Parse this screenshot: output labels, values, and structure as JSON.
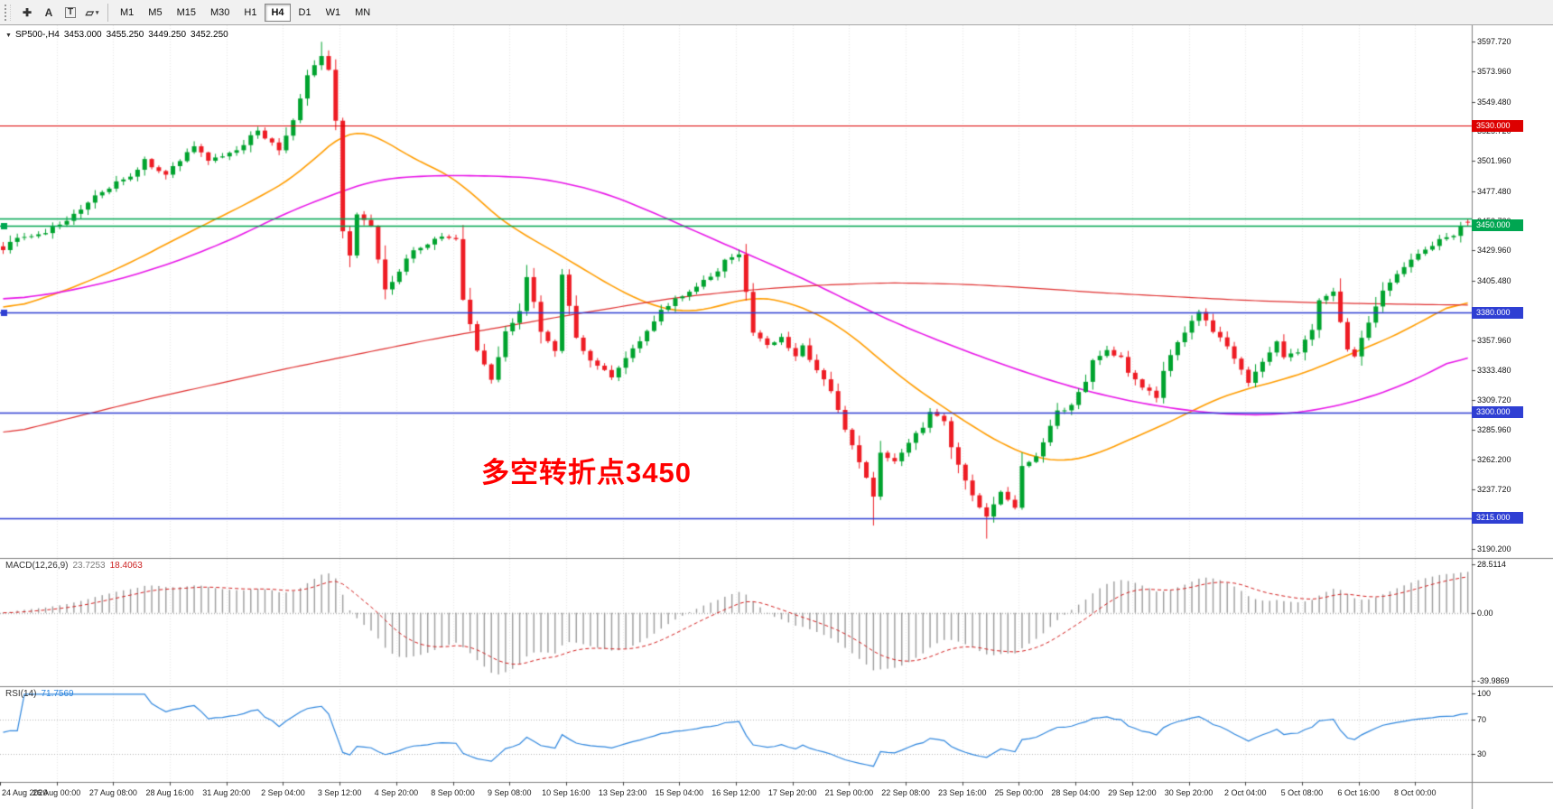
{
  "toolbar": {
    "tools": [
      {
        "name": "crosshair",
        "glyph": "✚"
      },
      {
        "name": "text-label",
        "glyph": "A"
      },
      {
        "name": "text",
        "glyph": "T",
        "boxed": true
      },
      {
        "name": "shapes",
        "glyph": "▱",
        "caret": "▾"
      }
    ],
    "timeframes": [
      "M1",
      "M5",
      "M15",
      "M30",
      "H1",
      "H4",
      "D1",
      "W1",
      "MN"
    ],
    "active_timeframe": "H4"
  },
  "chart": {
    "symbol_period": "SP500-,H4",
    "collapse_glyph": "▼",
    "open": "3453.000",
    "high": "3455.250",
    "low": "3449.250",
    "close": "3452.250",
    "annotation": "多空转折点3450",
    "annotation_color": "#ff0000",
    "price_axis": {
      "ticks": [
        {
          "label": "3597.720",
          "v": 3597.72
        },
        {
          "label": "3573.960",
          "v": 3573.96
        },
        {
          "label": "3549.480",
          "v": 3549.48
        },
        {
          "label": "3525.720",
          "v": 3525.72
        },
        {
          "label": "3501.960",
          "v": 3501.96
        },
        {
          "label": "3477.480",
          "v": 3477.48
        },
        {
          "label": "3453.720",
          "v": 3453.72
        },
        {
          "label": "3429.960",
          "v": 3429.96
        },
        {
          "label": "3405.480",
          "v": 3405.48
        },
        {
          "label": "3381.720",
          "v": 3381.72
        },
        {
          "label": "3357.960",
          "v": 3357.96
        },
        {
          "label": "3333.480",
          "v": 3333.48
        },
        {
          "label": "3309.720",
          "v": 3309.72
        },
        {
          "label": "3285.960",
          "v": 3285.96
        },
        {
          "label": "3262.200",
          "v": 3262.2
        },
        {
          "label": "3237.720",
          "v": 3237.72
        },
        {
          "label": "3213.960",
          "v": 3213.96
        },
        {
          "label": "3190.200",
          "v": 3190.2
        }
      ],
      "badges": [
        {
          "label": "3530.000",
          "price": 3530.0,
          "color": "#dd0000"
        },
        {
          "label": "3450.000",
          "price": 3450.0,
          "color": "#00a651"
        },
        {
          "label": "3380.000",
          "price": 3380.0,
          "color": "#2f3fd3"
        },
        {
          "label": "3300.000",
          "price": 3300.0,
          "color": "#2f3fd3"
        },
        {
          "label": "3215.000",
          "price": 3215.0,
          "color": "#2f3fd3"
        }
      ]
    },
    "h_lines": [
      {
        "price": 3530.0,
        "color": "#dd0000",
        "width": 1.2
      },
      {
        "price": 3455.5,
        "color": "#00a651",
        "width": 1.4
      },
      {
        "price": 3450.0,
        "color": "#00a651",
        "width": 1.4,
        "handle": true
      },
      {
        "price": 3380.0,
        "color": "#2f3fd3",
        "width": 1.4,
        "handle": true
      },
      {
        "price": 3300.0,
        "color": "#2f3fd3",
        "width": 1.4
      },
      {
        "price": 3215.0,
        "color": "#2f3fd3",
        "width": 1.6
      }
    ],
    "time_labels": [
      "24 Aug 2020",
      "26 Aug 00:00",
      "27 Aug 08:00",
      "28 Aug 16:00",
      "31 Aug 20:00",
      "2 Sep 04:00",
      "3 Sep 12:00",
      "4 Sep 20:00",
      "8 Sep 00:00",
      "9 Sep 08:00",
      "10 Sep 16:00",
      "13 Sep 23:00",
      "15 Sep 04:00",
      "16 Sep 12:00",
      "17 Sep 20:00",
      "21 Sep 00:00",
      "22 Sep 08:00",
      "23 Sep 16:00",
      "25 Sep 00:00",
      "28 Sep 04:00",
      "29 Sep 12:00",
      "30 Sep 20:00",
      "2 Oct 04:00",
      "5 Oct 08:00",
      "6 Oct 16:00",
      "8 Oct 00:00"
    ]
  },
  "chart_data": {
    "type": "candlestick",
    "symbol": "SP500-",
    "timeframe": "H4",
    "bars": 208,
    "price_axis_range": [
      3190.2,
      3597.72
    ],
    "last_bar": {
      "open": 3453.0,
      "high": 3455.25,
      "low": 3449.25,
      "close": 3452.25
    },
    "up_color": "#00a32e",
    "down_color": "#ee1c24",
    "close_waypoints": [
      [
        0,
        3430
      ],
      [
        1,
        3438
      ],
      [
        5,
        3442
      ],
      [
        10,
        3458
      ],
      [
        14,
        3478
      ],
      [
        18,
        3490
      ],
      [
        20,
        3502
      ],
      [
        23,
        3490
      ],
      [
        27,
        3515
      ],
      [
        29,
        3503
      ],
      [
        33,
        3510
      ],
      [
        36,
        3527
      ],
      [
        39,
        3510
      ],
      [
        41,
        3535
      ],
      [
        43,
        3571
      ],
      [
        45,
        3587
      ],
      [
        46,
        3575
      ],
      [
        47,
        3535
      ],
      [
        48,
        3446
      ],
      [
        49,
        3426
      ],
      [
        50,
        3458
      ],
      [
        52,
        3450
      ],
      [
        53,
        3422
      ],
      [
        54,
        3398
      ],
      [
        56,
        3414
      ],
      [
        58,
        3430
      ],
      [
        60,
        3434
      ],
      [
        62,
        3442
      ],
      [
        64,
        3438
      ],
      [
        65,
        3390
      ],
      [
        67,
        3349
      ],
      [
        69,
        3325
      ],
      [
        71,
        3365
      ],
      [
        73,
        3381
      ],
      [
        74,
        3410
      ],
      [
        76,
        3365
      ],
      [
        78,
        3349
      ],
      [
        79,
        3410
      ],
      [
        81,
        3361
      ],
      [
        82,
        3349
      ],
      [
        84,
        3337
      ],
      [
        86,
        3329
      ],
      [
        88,
        3345
      ],
      [
        90,
        3357
      ],
      [
        91,
        3365
      ],
      [
        93,
        3381
      ],
      [
        95,
        3390
      ],
      [
        97,
        3398
      ],
      [
        99,
        3406
      ],
      [
        101,
        3414
      ],
      [
        102,
        3422
      ],
      [
        104,
        3426
      ],
      [
        105,
        3398
      ],
      [
        106,
        3365
      ],
      [
        108,
        3353
      ],
      [
        110,
        3361
      ],
      [
        112,
        3345
      ],
      [
        113,
        3353
      ],
      [
        115,
        3333
      ],
      [
        117,
        3317
      ],
      [
        118,
        3301
      ],
      [
        120,
        3272
      ],
      [
        122,
        3248
      ],
      [
        123,
        3232
      ],
      [
        124,
        3268
      ],
      [
        126,
        3260
      ],
      [
        128,
        3276
      ],
      [
        130,
        3288
      ],
      [
        131,
        3301
      ],
      [
        133,
        3293
      ],
      [
        134,
        3272
      ],
      [
        136,
        3244
      ],
      [
        138,
        3224
      ],
      [
        139,
        3216
      ],
      [
        141,
        3236
      ],
      [
        143,
        3224
      ],
      [
        144,
        3256
      ],
      [
        146,
        3264
      ],
      [
        148,
        3288
      ],
      [
        149,
        3301
      ],
      [
        151,
        3305
      ],
      [
        153,
        3325
      ],
      [
        154,
        3341
      ],
      [
        156,
        3349
      ],
      [
        158,
        3345
      ],
      [
        159,
        3333
      ],
      [
        161,
        3321
      ],
      [
        163,
        3313
      ],
      [
        164,
        3333
      ],
      [
        166,
        3357
      ],
      [
        168,
        3373
      ],
      [
        169,
        3381
      ],
      [
        171,
        3365
      ],
      [
        173,
        3353
      ],
      [
        175,
        3333
      ],
      [
        176,
        3325
      ],
      [
        178,
        3341
      ],
      [
        180,
        3357
      ],
      [
        181,
        3345
      ],
      [
        183,
        3349
      ],
      [
        185,
        3365
      ],
      [
        186,
        3390
      ],
      [
        188,
        3398
      ],
      [
        190,
        3349
      ],
      [
        191,
        3345
      ],
      [
        193,
        3373
      ],
      [
        195,
        3398
      ],
      [
        197,
        3410
      ],
      [
        198,
        3418
      ],
      [
        199,
        3422
      ],
      [
        201,
        3430
      ],
      [
        202,
        3434
      ],
      [
        203,
        3438
      ],
      [
        205,
        3442
      ],
      [
        206,
        3450
      ],
      [
        207,
        3452.25
      ]
    ],
    "extremes": [
      {
        "i": 45,
        "high": 3597.5
      },
      {
        "i": 123,
        "low": 3209.0
      },
      {
        "i": 139,
        "low": 3198.5
      }
    ],
    "moving_averages": [
      {
        "name": "ma-fast",
        "color": "#ff9d00",
        "waypoints": [
          [
            0,
            3382
          ],
          [
            6,
            3392
          ],
          [
            12,
            3405
          ],
          [
            18,
            3420
          ],
          [
            24,
            3438
          ],
          [
            30,
            3455
          ],
          [
            36,
            3472
          ],
          [
            42,
            3492
          ],
          [
            46,
            3515
          ],
          [
            49,
            3527
          ],
          [
            52,
            3525
          ],
          [
            56,
            3510
          ],
          [
            60,
            3498
          ],
          [
            64,
            3488
          ],
          [
            66,
            3478
          ],
          [
            68,
            3465
          ],
          [
            72,
            3448
          ],
          [
            76,
            3435
          ],
          [
            80,
            3422
          ],
          [
            84,
            3408
          ],
          [
            88,
            3395
          ],
          [
            92,
            3385
          ],
          [
            96,
            3380
          ],
          [
            100,
            3383
          ],
          [
            104,
            3390
          ],
          [
            106,
            3393
          ],
          [
            110,
            3390
          ],
          [
            114,
            3382
          ],
          [
            118,
            3370
          ],
          [
            122,
            3352
          ],
          [
            126,
            3332
          ],
          [
            130,
            3315
          ],
          [
            134,
            3300
          ],
          [
            138,
            3285
          ],
          [
            142,
            3272
          ],
          [
            146,
            3263
          ],
          [
            150,
            3260
          ],
          [
            154,
            3265
          ],
          [
            158,
            3275
          ],
          [
            162,
            3285
          ],
          [
            166,
            3295
          ],
          [
            170,
            3307
          ],
          [
            174,
            3316
          ],
          [
            178,
            3322
          ],
          [
            182,
            3328
          ],
          [
            186,
            3336
          ],
          [
            190,
            3346
          ],
          [
            194,
            3355
          ],
          [
            198,
            3365
          ],
          [
            202,
            3378
          ],
          [
            207,
            3392
          ]
        ]
      },
      {
        "name": "ma-mid",
        "color": "#e816e8",
        "waypoints": [
          [
            0,
            3390
          ],
          [
            8,
            3396
          ],
          [
            16,
            3406
          ],
          [
            24,
            3420
          ],
          [
            32,
            3438
          ],
          [
            40,
            3460
          ],
          [
            48,
            3478
          ],
          [
            53,
            3487
          ],
          [
            60,
            3490
          ],
          [
            68,
            3490
          ],
          [
            76,
            3488
          ],
          [
            84,
            3478
          ],
          [
            90,
            3465
          ],
          [
            96,
            3450
          ],
          [
            102,
            3435
          ],
          [
            108,
            3420
          ],
          [
            114,
            3405
          ],
          [
            120,
            3388
          ],
          [
            126,
            3372
          ],
          [
            132,
            3358
          ],
          [
            138,
            3345
          ],
          [
            144,
            3333
          ],
          [
            150,
            3322
          ],
          [
            156,
            3313
          ],
          [
            162,
            3306
          ],
          [
            168,
            3301
          ],
          [
            174,
            3298
          ],
          [
            180,
            3298
          ],
          [
            186,
            3302
          ],
          [
            192,
            3310
          ],
          [
            198,
            3322
          ],
          [
            203,
            3336
          ],
          [
            207,
            3348
          ]
        ]
      },
      {
        "name": "ma-slow",
        "color": "#e03030",
        "waypoints": [
          [
            0,
            3282
          ],
          [
            20,
            3310
          ],
          [
            40,
            3335
          ],
          [
            60,
            3358
          ],
          [
            80,
            3378
          ],
          [
            95,
            3392
          ],
          [
            105,
            3398
          ],
          [
            115,
            3402
          ],
          [
            125,
            3404
          ],
          [
            135,
            3403
          ],
          [
            145,
            3400
          ],
          [
            155,
            3396
          ],
          [
            165,
            3393
          ],
          [
            175,
            3390
          ],
          [
            185,
            3388
          ],
          [
            195,
            3387
          ],
          [
            207,
            3386
          ]
        ]
      }
    ]
  },
  "macd": {
    "label": "MACD(12,26,9)",
    "value_main": "23.7253",
    "value_signal": "18.4063",
    "axis_ticks": [
      {
        "label": "28.5114",
        "v": 28.5114
      },
      {
        "label": "0.00",
        "v": 0
      },
      {
        "label": "-39.9869",
        "v": -39.9869
      }
    ],
    "histogram_color": "#9c9c9c",
    "signal_color": "#d42020"
  },
  "rsi": {
    "label": "RSI(14)",
    "value": "71.7569",
    "axis_ticks": [
      {
        "label": "100",
        "v": 100
      },
      {
        "label": "70",
        "v": 70
      },
      {
        "label": "30",
        "v": 30
      }
    ],
    "levels": [
      70,
      30
    ],
    "line_color": "#2e86de"
  }
}
